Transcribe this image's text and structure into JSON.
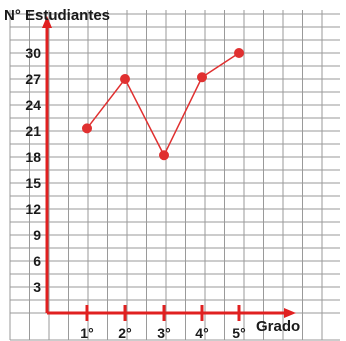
{
  "chart_data": {
    "type": "line",
    "title": "",
    "ylabel": "N° Estudiantes",
    "xlabel": "Grado",
    "categories": [
      "1°",
      "2°",
      "3°",
      "4°",
      "5°"
    ],
    "series": [
      {
        "values": [
          21.3,
          27,
          18.2,
          27.2,
          30
        ]
      }
    ],
    "y_ticks": [
      3,
      6,
      9,
      12,
      15,
      18,
      21,
      24,
      27,
      30
    ],
    "ylim": [
      0,
      30
    ],
    "grid": true,
    "colors": {
      "series": "#e03030",
      "axis": "#e02020",
      "grid": "#9a9a9a"
    }
  }
}
